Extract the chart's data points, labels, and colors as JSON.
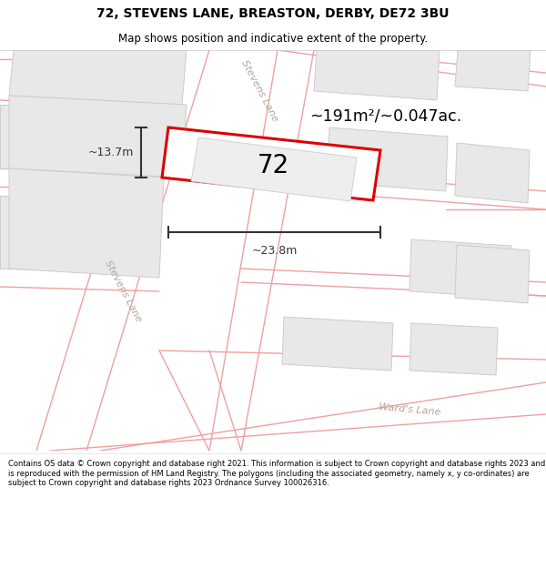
{
  "title": "72, STEVENS LANE, BREASTON, DERBY, DE72 3BU",
  "subtitle": "Map shows position and indicative extent of the property.",
  "footer": "Contains OS data © Crown copyright and database right 2021. This information is subject to Crown copyright and database rights 2023 and is reproduced with the permission of HM Land Registry. The polygons (including the associated geometry, namely x, y co-ordinates) are subject to Crown copyright and database rights 2023 Ordnance Survey 100026316.",
  "map_bg": "#ffffff",
  "road_outline": "#f0a0a0",
  "building_fill": "#e8e8e8",
  "building_outline": "#cccccc",
  "highlight_fill": "#ffffff",
  "highlight_outline": "#dd0000",
  "road_text_color": "#b0a8a0",
  "measure_color": "#333333",
  "area_text": "~191m²/~0.047ac.",
  "label_72": "72",
  "dim_width": "~23.8m",
  "dim_height": "~13.7m",
  "stevens_lane_top": "Stevens Lane",
  "stevens_lane_bottom": "Stevens Lane",
  "wards_lane": "Ward's Lane",
  "title_fontsize": 10,
  "subtitle_fontsize": 8.5,
  "footer_fontsize": 6.0
}
